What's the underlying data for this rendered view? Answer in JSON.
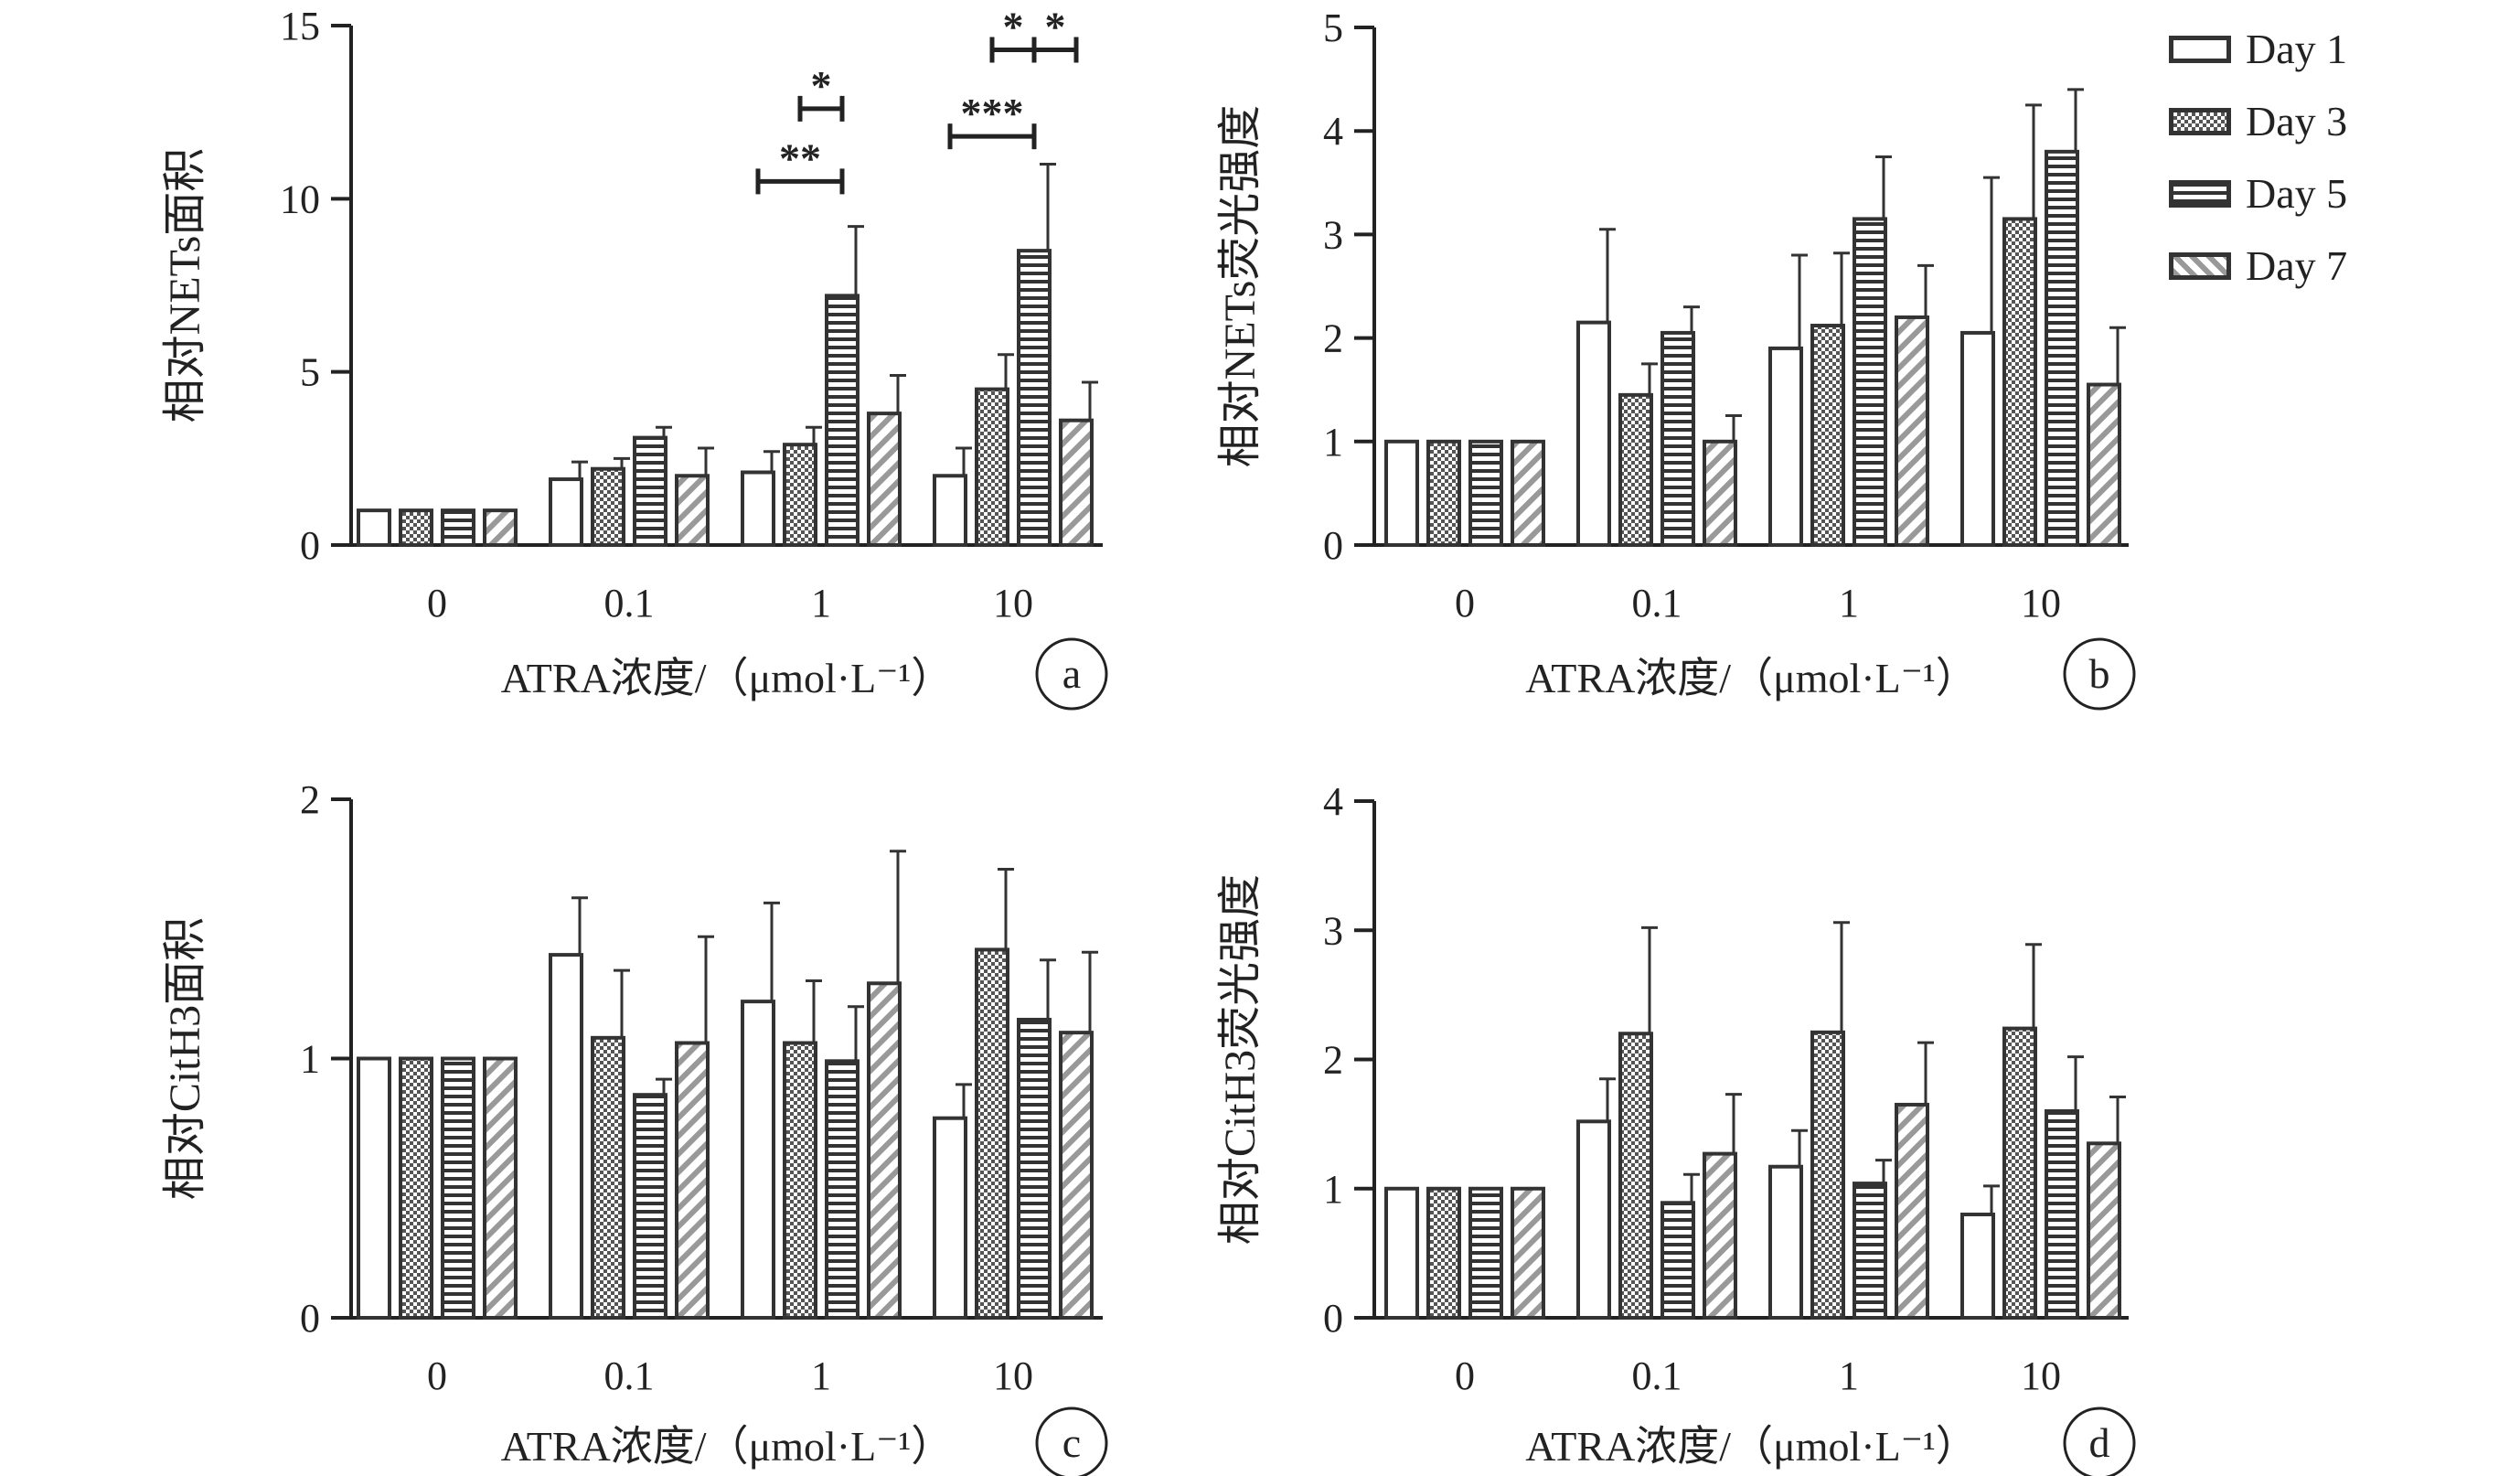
{
  "legend": {
    "items": [
      {
        "label": "Day 1",
        "pattern": "open"
      },
      {
        "label": "Day 3",
        "pattern": "dots"
      },
      {
        "label": "Day 5",
        "pattern": "hlines"
      },
      {
        "label": "Day 7",
        "pattern": "diag"
      }
    ]
  },
  "chart_data": [
    {
      "type": "bar",
      "panel": "a",
      "ylabel": "相对NETs面积",
      "xlabel": "ATRA浓度/（μmol·L⁻¹）",
      "categories": [
        "0",
        "0.1",
        "1",
        "10"
      ],
      "ylim": [
        0,
        15
      ],
      "yticks": [
        0,
        5,
        10,
        15
      ],
      "series": [
        {
          "name": "Day 1",
          "values": [
            1.0,
            1.9,
            2.1,
            2.0
          ],
          "errors": [
            0,
            0.5,
            0.6,
            0.8
          ]
        },
        {
          "name": "Day 3",
          "values": [
            1.0,
            2.2,
            2.9,
            4.5
          ],
          "errors": [
            0,
            0.3,
            0.5,
            1.0
          ]
        },
        {
          "name": "Day 5",
          "values": [
            1.0,
            3.1,
            7.2,
            8.5
          ],
          "errors": [
            0,
            0.3,
            2.0,
            2.5
          ]
        },
        {
          "name": "Day 7",
          "values": [
            1.0,
            2.0,
            3.8,
            3.6
          ],
          "errors": [
            0,
            0.8,
            1.1,
            1.1
          ]
        }
      ],
      "significance": [
        {
          "category": 2,
          "from": 0,
          "to": 2,
          "label": "**",
          "level": 10.5
        },
        {
          "category": 2,
          "from": 1,
          "to": 2,
          "label": "*",
          "level": 12.6
        },
        {
          "category": 3,
          "from": 0,
          "to": 2,
          "label": "***",
          "level": 11.8
        },
        {
          "category": 3,
          "from": 2,
          "to": 1,
          "label": "*",
          "level": 14.3
        },
        {
          "category": 3,
          "from": 2,
          "to": 3,
          "label": "*",
          "level": 14.3
        }
      ]
    },
    {
      "type": "bar",
      "panel": "b",
      "ylabel": "相对NETs荧光强度",
      "xlabel": "ATRA浓度/（μmol·L⁻¹）",
      "categories": [
        "0",
        "0.1",
        "1",
        "10"
      ],
      "ylim": [
        0,
        5
      ],
      "yticks": [
        0,
        1,
        2,
        3,
        4,
        5
      ],
      "series": [
        {
          "name": "Day 1",
          "values": [
            1.0,
            2.15,
            1.9,
            2.05
          ],
          "errors": [
            0,
            0.9,
            0.9,
            1.5
          ]
        },
        {
          "name": "Day 3",
          "values": [
            1.0,
            1.45,
            2.12,
            3.15
          ],
          "errors": [
            0,
            0.3,
            0.7,
            1.1
          ]
        },
        {
          "name": "Day 5",
          "values": [
            1.0,
            2.05,
            3.15,
            3.8
          ],
          "errors": [
            0,
            0.25,
            0.6,
            0.6
          ]
        },
        {
          "name": "Day 7",
          "values": [
            1.0,
            1.0,
            2.2,
            1.55
          ],
          "errors": [
            0,
            0.25,
            0.5,
            0.55
          ]
        }
      ],
      "significance": []
    },
    {
      "type": "bar",
      "panel": "c",
      "ylabel": "相对CitH3面积",
      "xlabel": "ATRA浓度/（μmol·L⁻¹）",
      "categories": [
        "0",
        "0.1",
        "1",
        "10"
      ],
      "ylim": [
        0,
        2
      ],
      "yticks": [
        0,
        1,
        2
      ],
      "series": [
        {
          "name": "Day 1",
          "values": [
            1.0,
            1.4,
            1.22,
            0.77
          ],
          "errors": [
            0,
            0.22,
            0.38,
            0.13
          ]
        },
        {
          "name": "Day 3",
          "values": [
            1.0,
            1.08,
            1.06,
            1.42
          ],
          "errors": [
            0,
            0.26,
            0.24,
            0.31
          ]
        },
        {
          "name": "Day 5",
          "values": [
            1.0,
            0.86,
            0.99,
            1.15
          ],
          "errors": [
            0,
            0.06,
            0.21,
            0.23
          ]
        },
        {
          "name": "Day 7",
          "values": [
            1.0,
            1.06,
            1.29,
            1.1
          ],
          "errors": [
            0,
            0.41,
            0.51,
            0.31
          ]
        }
      ],
      "significance": []
    },
    {
      "type": "bar",
      "panel": "d",
      "ylabel": "相对CitH3荧光强度",
      "xlabel": "ATRA浓度/（μmol·L⁻¹）",
      "categories": [
        "0",
        "0.1",
        "1",
        "10"
      ],
      "ylim": [
        0,
        4
      ],
      "yticks": [
        0,
        1,
        2,
        3,
        4
      ],
      "series": [
        {
          "name": "Day 1",
          "values": [
            1.0,
            1.52,
            1.17,
            0.8
          ],
          "errors": [
            0,
            0.33,
            0.28,
            0.22
          ]
        },
        {
          "name": "Day 3",
          "values": [
            1.0,
            2.2,
            2.21,
            2.24
          ],
          "errors": [
            0,
            0.82,
            0.85,
            0.65
          ]
        },
        {
          "name": "Day 5",
          "values": [
            1.0,
            0.89,
            1.04,
            1.6
          ],
          "errors": [
            0,
            0.22,
            0.18,
            0.42
          ]
        },
        {
          "name": "Day 7",
          "values": [
            1.0,
            1.27,
            1.65,
            1.35
          ],
          "errors": [
            0,
            0.46,
            0.48,
            0.36
          ]
        }
      ],
      "significance": []
    }
  ]
}
